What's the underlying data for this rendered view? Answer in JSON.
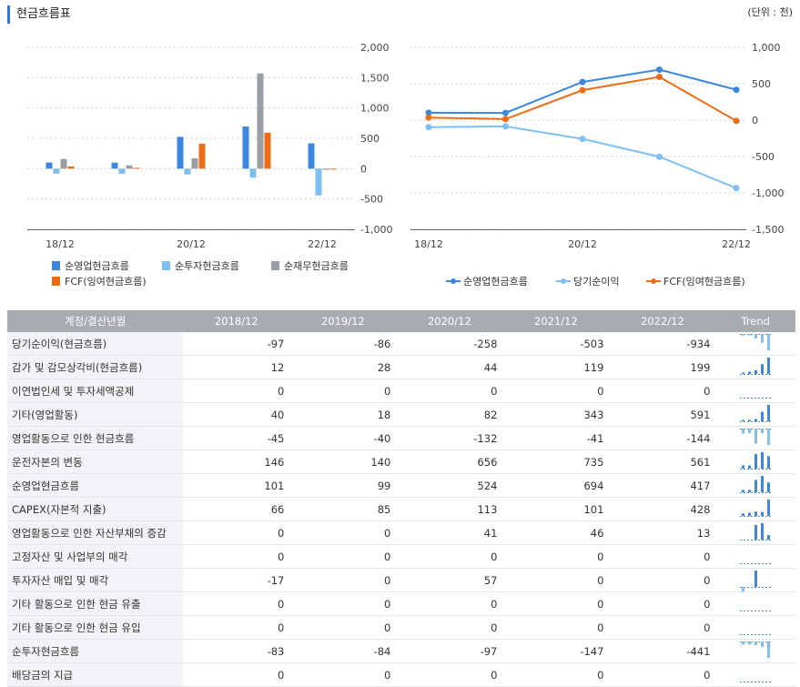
{
  "header": {
    "title": "현금흐름표",
    "unit": "(단위 : 천)"
  },
  "colors": {
    "op_cf": "#3a87dd",
    "inv_cf": "#7fbff0",
    "fin_cf": "#9a9ea6",
    "fcf": "#ee6c17",
    "net_income": "#7fbff0",
    "table_header_bg": "#a8abb0",
    "table_label_bg": "#f2f3f6"
  },
  "chart_data": [
    {
      "type": "bar",
      "categories": [
        "18/12",
        "19/12",
        "20/12",
        "21/12",
        "22/12"
      ],
      "x_tick_labels": [
        "18/12",
        "",
        "20/12",
        "",
        "22/12"
      ],
      "y_ticks": [
        "2,000",
        "1,500",
        "1,000",
        "500",
        "0",
        "-500",
        "-1,000"
      ],
      "ylim": [
        -1000,
        2000
      ],
      "y_axis_side": "right",
      "grid": true,
      "legend_position": "bottom",
      "series": [
        {
          "name": "순영업현금흐름",
          "values": [
            101,
            99,
            524,
            694,
            417
          ]
        },
        {
          "name": "순투자현금흐름",
          "values": [
            -83,
            -84,
            -97,
            -147,
            -441
          ]
        },
        {
          "name": "순재무현금흐름",
          "values": [
            160,
            55,
            170,
            1570,
            -20
          ]
        },
        {
          "name": "FCF(잉여현금흐름)",
          "values": [
            35,
            14,
            411,
            593,
            -11
          ]
        }
      ]
    },
    {
      "type": "line",
      "categories": [
        "18/12",
        "19/12",
        "20/12",
        "21/12",
        "22/12"
      ],
      "x_tick_labels": [
        "18/12",
        "",
        "20/12",
        "",
        "22/12"
      ],
      "y_ticks": [
        "1,000",
        "500",
        "0",
        "-500",
        "-1,000",
        "-1,500"
      ],
      "ylim": [
        -1500,
        1000
      ],
      "y_axis_side": "right",
      "grid": true,
      "legend_position": "bottom",
      "series": [
        {
          "name": "순영업현금흐름",
          "values": [
            101,
            99,
            524,
            694,
            417
          ]
        },
        {
          "name": "당기순이익",
          "values": [
            -97,
            -86,
            -258,
            -503,
            -934
          ]
        },
        {
          "name": "FCF(잉여현금흐름)",
          "values": [
            35,
            14,
            411,
            593,
            -11
          ]
        }
      ]
    }
  ],
  "table": {
    "header": [
      "계정/결산년월",
      "2018/12",
      "2019/12",
      "2020/12",
      "2021/12",
      "2022/12",
      "Trend"
    ],
    "rows": [
      {
        "label": "당기순이익(현금흐름)",
        "values": [
          "-97",
          "-86",
          "-258",
          "-503",
          "-934"
        ]
      },
      {
        "label": "감가 및 감모상각비(현금흐름)",
        "values": [
          "12",
          "28",
          "44",
          "119",
          "199"
        ]
      },
      {
        "label": "이연법인세 및 투자세액공제",
        "values": [
          "0",
          "0",
          "0",
          "0",
          "0"
        ]
      },
      {
        "label": "기타(영업활동)",
        "values": [
          "40",
          "18",
          "82",
          "343",
          "591"
        ]
      },
      {
        "label": "영업활동으로 인한 현금흐름",
        "values": [
          "-45",
          "-40",
          "-132",
          "-41",
          "-144"
        ]
      },
      {
        "label": "운전자본의 변동",
        "values": [
          "146",
          "140",
          "656",
          "735",
          "561"
        ]
      },
      {
        "label": "순영업현금흐름",
        "values": [
          "101",
          "99",
          "524",
          "694",
          "417"
        ]
      },
      {
        "label": "CAPEX(자본적 지출)",
        "values": [
          "66",
          "85",
          "113",
          "101",
          "428"
        ]
      },
      {
        "label": "영업활동으로 인한 자산부채의 증감",
        "values": [
          "0",
          "0",
          "41",
          "46",
          "13"
        ]
      },
      {
        "label": "고정자산 및 사업부의 매각",
        "values": [
          "0",
          "0",
          "0",
          "0",
          "0"
        ]
      },
      {
        "label": "투자자산 매입 및 매각",
        "values": [
          "-17",
          "0",
          "57",
          "0",
          "0"
        ]
      },
      {
        "label": "기타 활동으로 인한 현금 유출",
        "values": [
          "0",
          "0",
          "0",
          "0",
          "0"
        ]
      },
      {
        "label": "기타 활동으로 인한 현금 유입",
        "values": [
          "0",
          "0",
          "0",
          "0",
          "0"
        ]
      },
      {
        "label": "순투자현금흐름",
        "values": [
          "-83",
          "-84",
          "-97",
          "-147",
          "-441"
        ]
      },
      {
        "label": "배당금의 지급",
        "values": [
          "0",
          "0",
          "0",
          "0",
          "0"
        ]
      }
    ]
  }
}
